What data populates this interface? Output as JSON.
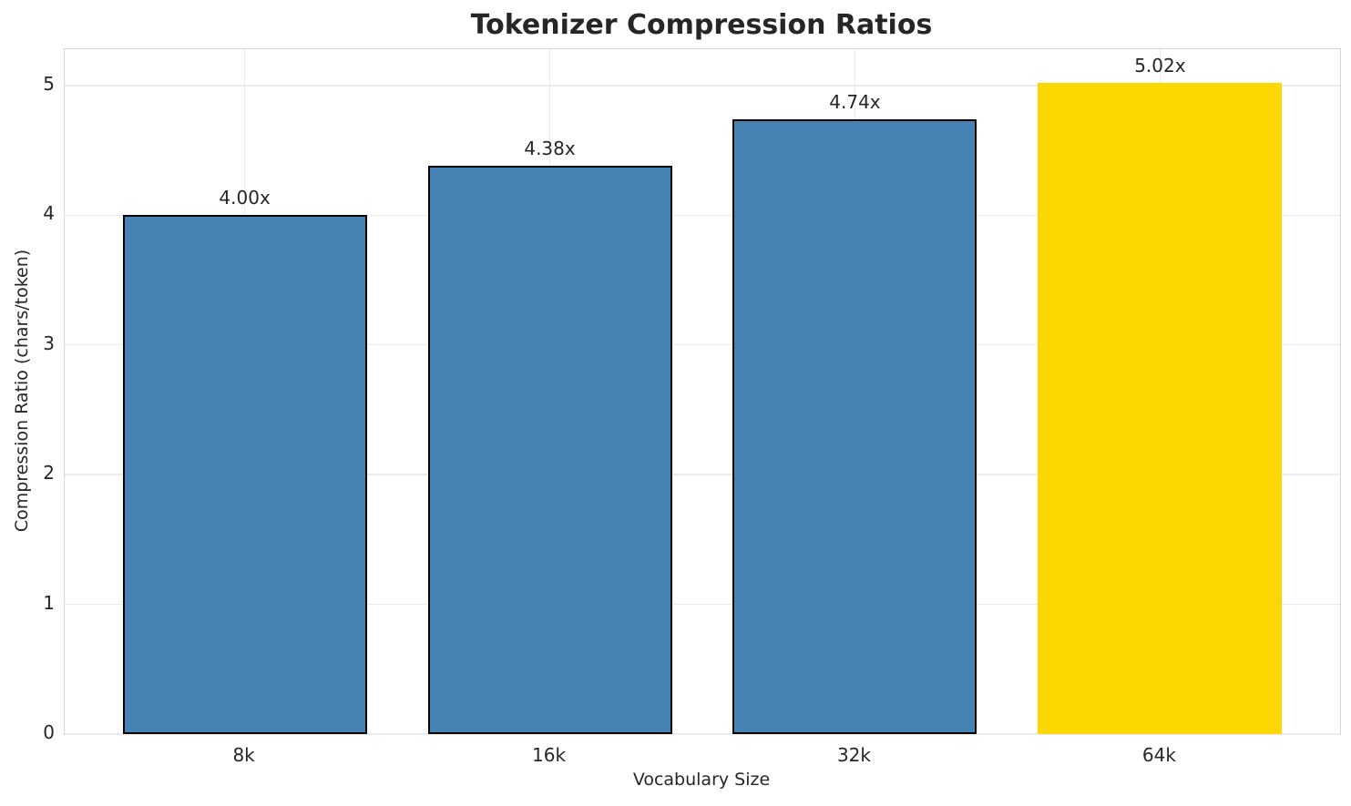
{
  "chart_data": {
    "type": "bar",
    "title": "Tokenizer Compression Ratios",
    "xlabel": "Vocabulary Size",
    "ylabel": "Compression Ratio (chars/token)",
    "categories": [
      "8k",
      "16k",
      "32k",
      "64k"
    ],
    "values": [
      4.0,
      4.38,
      4.74,
      5.02
    ],
    "value_labels": [
      "4.00x",
      "4.38x",
      "4.74x",
      "5.02x"
    ],
    "bar_colors": [
      "#4682B4",
      "#4682B4",
      "#4682B4",
      "#FFD700"
    ],
    "bar_edge_colors": [
      "#000000",
      "#000000",
      "#000000",
      "none"
    ],
    "y_ticks": [
      0,
      1,
      2,
      3,
      4,
      5
    ],
    "ylim": [
      0,
      5.28
    ],
    "xlim": [
      -0.59,
      3.59
    ],
    "bar_width_units": 0.8,
    "grid": true,
    "legend_position": "none",
    "grid_color": "#ebebeb",
    "spine_color": "#d5d5d5",
    "text_color": "#262626",
    "background_color": "#ffffff"
  }
}
